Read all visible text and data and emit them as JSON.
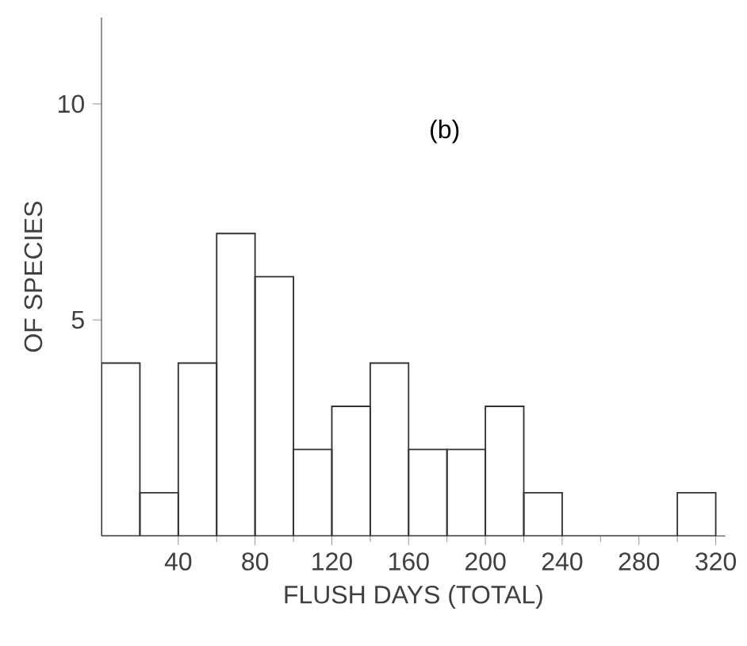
{
  "chart_data": {
    "type": "histogram",
    "xlabel": "FLUSH DAYS (TOTAL)",
    "ylabel": "OF SPECIES",
    "bins": [
      0,
      20,
      40,
      60,
      80,
      100,
      120,
      140,
      160,
      180,
      200,
      220,
      240,
      260,
      280,
      300,
      320
    ],
    "values": [
      4,
      1,
      4,
      7,
      6,
      2,
      3,
      4,
      2,
      2,
      3,
      1,
      0,
      0,
      0,
      1
    ],
    "color": "#333333",
    "xlim": [
      0,
      325
    ],
    "ylim": [
      0,
      12
    ],
    "xticks": [
      40,
      80,
      120,
      160,
      200,
      240,
      280,
      320
    ],
    "yticks": [
      5,
      10
    ],
    "annotations": [
      "(b)"
    ],
    "grid": false
  }
}
